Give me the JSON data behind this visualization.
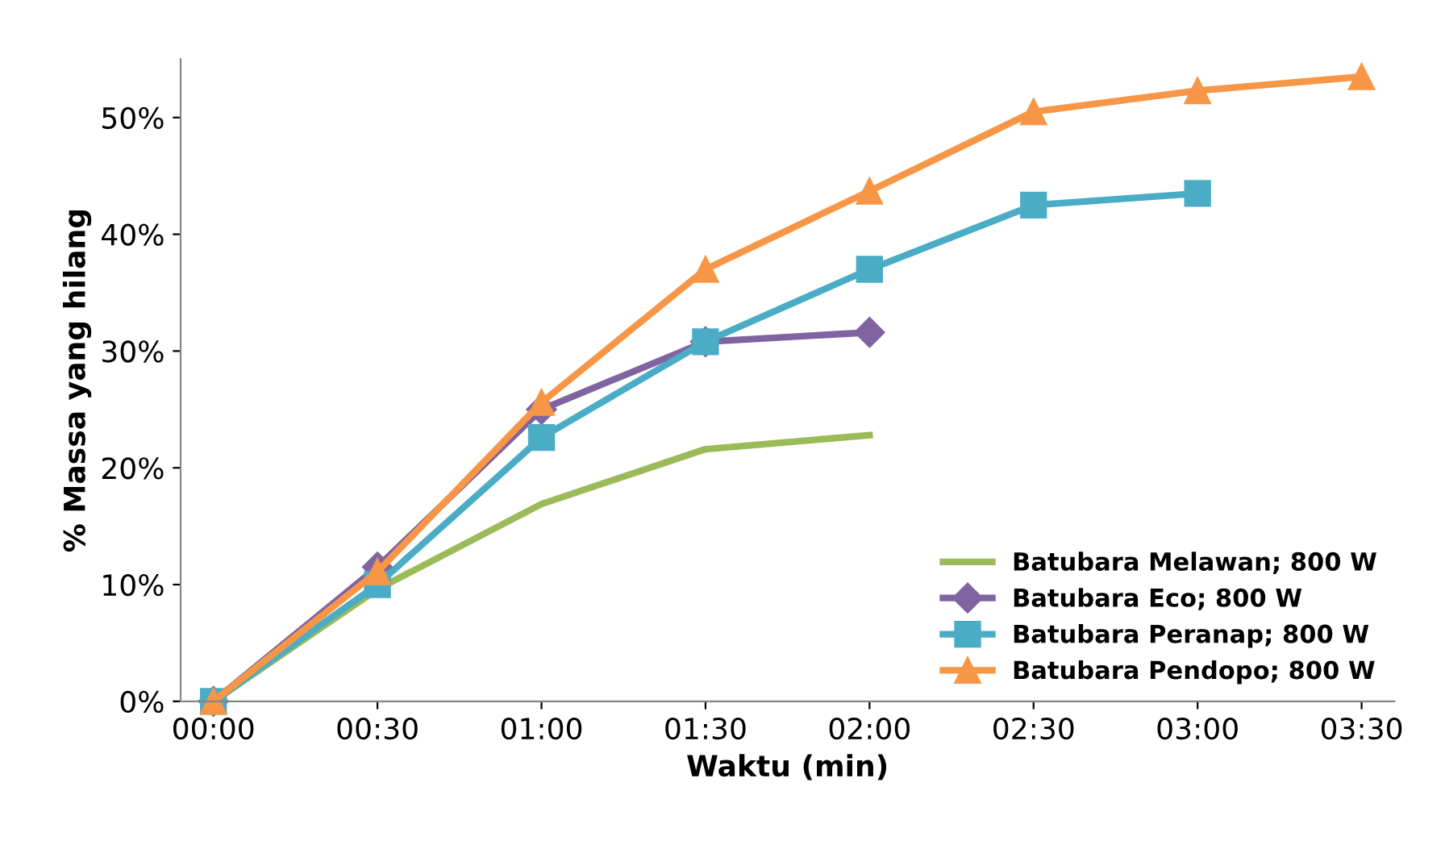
{
  "chart_data": {
    "type": "line",
    "xlabel": "Waktu (min)",
    "ylabel": "% Massa yang hilang",
    "categories": [
      "00:00",
      "00:30",
      "01:00",
      "01:30",
      "02:00",
      "02:30",
      "03:00",
      "03:30"
    ],
    "ylim": [
      0,
      55
    ],
    "yticks": [
      {
        "value": 0,
        "label": "0%"
      },
      {
        "value": 10,
        "label": "10%"
      },
      {
        "value": 20,
        "label": "20%"
      },
      {
        "value": 30,
        "label": "30%"
      },
      {
        "value": 40,
        "label": "40%"
      },
      {
        "value": 50,
        "label": "50%"
      }
    ],
    "grid": false,
    "legend": "bottom right",
    "line_style": "solid",
    "series": [
      {
        "name": "Batubara Melawan; 800 W",
        "color": "#9bbb59",
        "marker": "none",
        "values": [
          0,
          9.6,
          16.9,
          21.6,
          22.8,
          null,
          null,
          null
        ]
      },
      {
        "name": "Batubara Eco; 800 W",
        "color": "#8064a2",
        "marker": "diamond",
        "values": [
          0,
          11.5,
          25,
          30.8,
          31.6,
          null,
          null,
          null
        ]
      },
      {
        "name": "Batubara Peranap; 800 W",
        "color": "#4bacc6",
        "marker": "square",
        "values": [
          0,
          10,
          22.6,
          30.8,
          37,
          42.5,
          43.5,
          null
        ]
      },
      {
        "name": "Batubara Pendopo; 800 W",
        "color": "#f79646",
        "marker": "triangle",
        "values": [
          0,
          11.1,
          25.6,
          37,
          43.7,
          50.5,
          52.3,
          53.5
        ]
      }
    ]
  }
}
